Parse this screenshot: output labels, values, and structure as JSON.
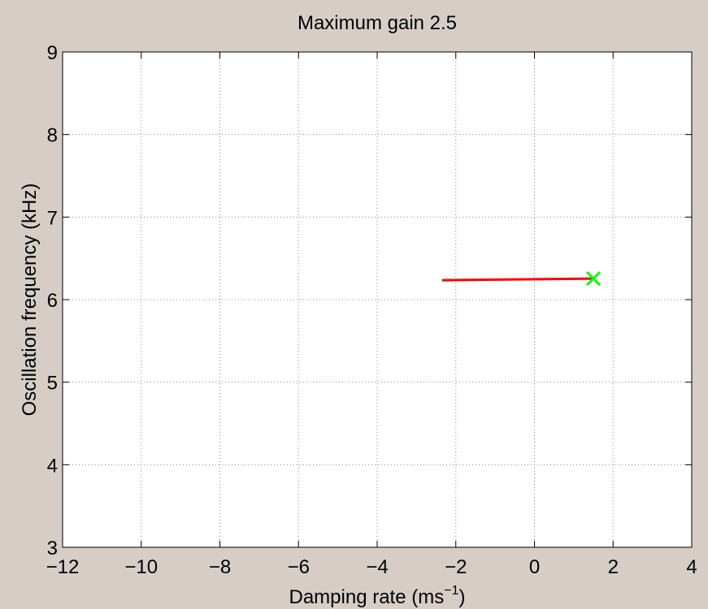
{
  "chart_data": {
    "type": "line",
    "title": "Maximum gain 2.5",
    "xlabel_base": "Damping rate (ms",
    "xlabel_sup": "−1",
    "xlabel_end": ")",
    "ylabel": "Oscillation frequency (kHz)",
    "xlim": [
      -12,
      4
    ],
    "ylim": [
      3,
      9
    ],
    "x_ticks": [
      -12,
      -10,
      -8,
      -6,
      -4,
      -2,
      0,
      2,
      4
    ],
    "y_ticks": [
      3,
      4,
      5,
      6,
      7,
      8,
      9
    ],
    "x_tick_labels": [
      "−12",
      "−10",
      "−8",
      "−6",
      "−4",
      "−2",
      "0",
      "2",
      "4"
    ],
    "y_tick_labels": [
      "3",
      "4",
      "5",
      "6",
      "7",
      "8",
      "9"
    ],
    "grid": true,
    "series": [
      {
        "color": "#ff0000",
        "x": [
          -2.35,
          -1.5,
          -0.5,
          0.5,
          1.5
        ],
        "y": [
          6.235,
          6.24,
          6.245,
          6.25,
          6.255
        ]
      }
    ],
    "markers": [
      {
        "shape": "x",
        "color": "#00ff00",
        "x": 1.5,
        "y": 6.255
      }
    ]
  }
}
